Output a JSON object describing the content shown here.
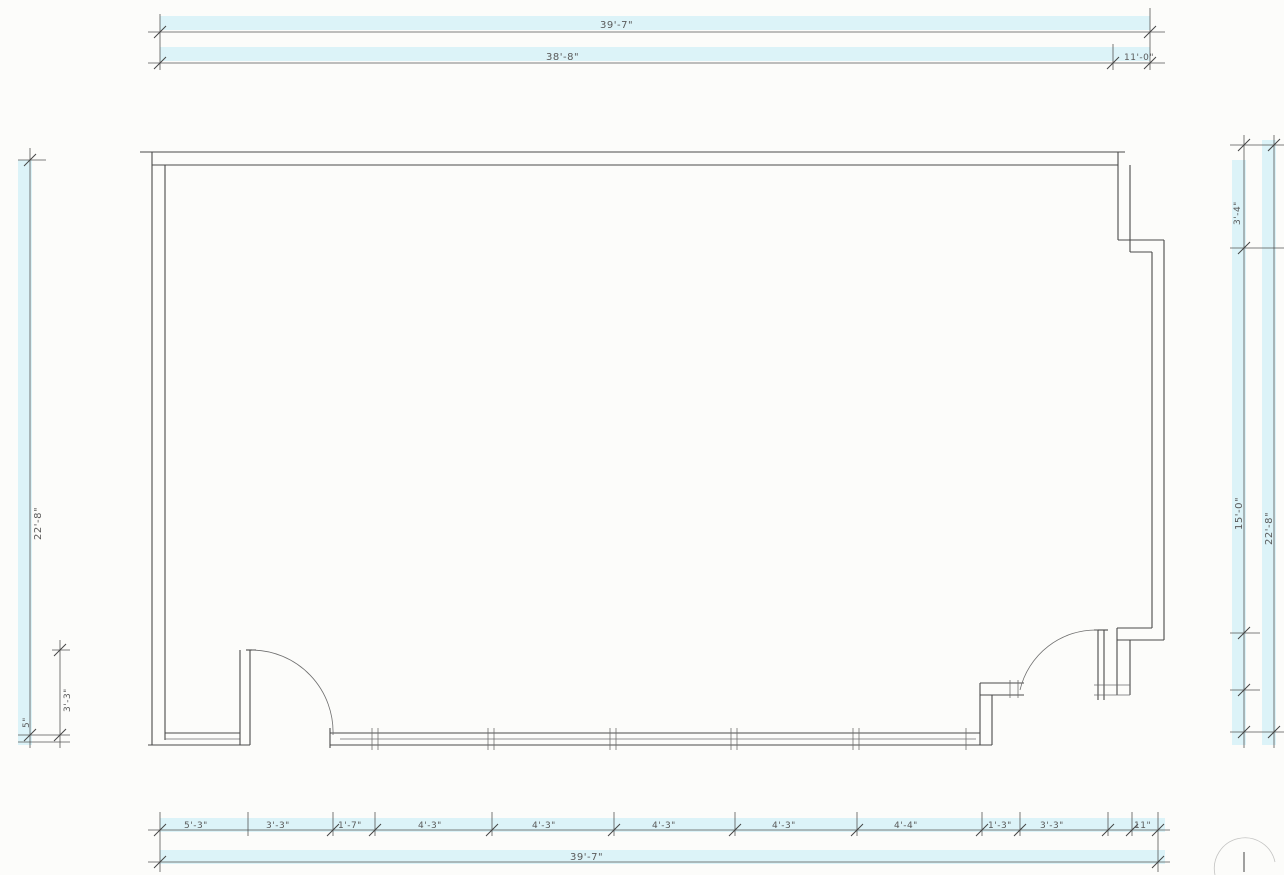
{
  "top_dimensions": {
    "overall": "39'-7\"",
    "inner": "38'-8\"",
    "right_small": "11'-0\""
  },
  "bottom_dimensions": {
    "segments": [
      "5'-3\"",
      "3'-3\"",
      "1'-7\"",
      "4'-3\"",
      "4'-3\"",
      "4'-3\"",
      "4'-3\"",
      "4'-4\"",
      "1'-3\"",
      "3'-3\"",
      "11\""
    ],
    "overall": "39'-7\""
  },
  "left_dimensions": {
    "overall": "22'-8\"",
    "small": "5\"",
    "lower": "3'-3\""
  },
  "right_dimensions": {
    "upper": "3'-4\"",
    "middle": "15'-0\"",
    "overall": "22'-8\""
  }
}
